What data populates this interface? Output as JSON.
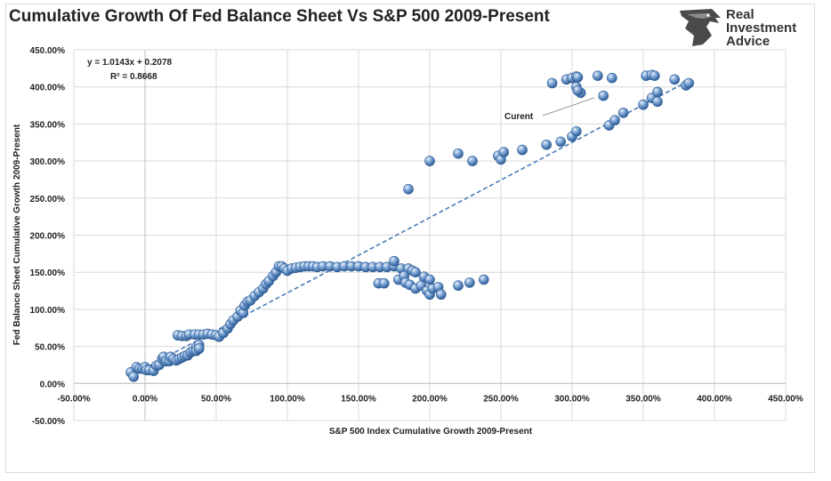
{
  "header": {
    "title": "Cumulative Growth Of Fed Balance Sheet Vs S&P 500 2009-Present"
  },
  "logo": {
    "line1": "Real",
    "line2": "Investment",
    "line3": "Advice",
    "icon": "eagle-head-icon"
  },
  "colors": {
    "point_fill": "#5b86c0",
    "point_stroke": "#2e5d96",
    "trendline": "#4a7ab8",
    "gridline": "#d9d9d9"
  },
  "chart_data": {
    "type": "scatter",
    "title": "Cumulative Growth Of Fed Balance Sheet Vs S&P 500 2009-Present",
    "xlabel": "S&P 500 Index Cumulative Growth 2009-Present",
    "ylabel": "Fed Balance Sheet Cumulative Growth 2009-Present",
    "xlim": [
      -0.5,
      4.5
    ],
    "ylim": [
      -0.5,
      4.5
    ],
    "x_ticks": [
      -0.5,
      0,
      0.5,
      1,
      1.5,
      2,
      2.5,
      3,
      3.5,
      4,
      4.5
    ],
    "x_tick_labels": [
      "-50.00%",
      "0.00%",
      "50.00%",
      "100.00%",
      "150.00%",
      "200.00%",
      "250.00%",
      "300.00%",
      "350.00%",
      "400.00%",
      "450.00%"
    ],
    "y_ticks": [
      -0.5,
      0,
      0.5,
      1,
      1.5,
      2,
      2.5,
      3,
      3.5,
      4,
      4.5
    ],
    "y_tick_labels": [
      "-50.00%",
      "0.00%",
      "50.00%",
      "100.00%",
      "150.00%",
      "200.00%",
      "250.00%",
      "300.00%",
      "350.00%",
      "400.00%",
      "450.00%"
    ],
    "grid": true,
    "gridlines": "vertical and horizontal",
    "legend": "none",
    "trendline": {
      "type": "linear",
      "slope": 1.0143,
      "intercept": 0.2078,
      "x_range": [
        -0.1,
        3.82
      ],
      "equation_label": "y = 1.0143x + 0.2078",
      "r2_label": "R² = 0.8668"
    },
    "annotation": {
      "text": "Curent",
      "points_to": [
        3.22,
        3.92
      ]
    },
    "series": [
      {
        "points": [
          [
            -0.1,
            0.15
          ],
          [
            -0.08,
            0.09
          ],
          [
            -0.06,
            0.22
          ],
          [
            -0.04,
            0.2
          ],
          [
            -0.02,
            0.2
          ],
          [
            0.0,
            0.22
          ],
          [
            0.01,
            0.18
          ],
          [
            0.03,
            0.18
          ],
          [
            0.06,
            0.17
          ],
          [
            0.08,
            0.24
          ],
          [
            0.1,
            0.25
          ],
          [
            0.12,
            0.33
          ],
          [
            0.13,
            0.36
          ],
          [
            0.15,
            0.3
          ],
          [
            0.17,
            0.3
          ],
          [
            0.18,
            0.36
          ],
          [
            0.2,
            0.33
          ],
          [
            0.22,
            0.31
          ],
          [
            0.24,
            0.33
          ],
          [
            0.26,
            0.35
          ],
          [
            0.28,
            0.37
          ],
          [
            0.3,
            0.38
          ],
          [
            0.32,
            0.42
          ],
          [
            0.34,
            0.44
          ],
          [
            0.36,
            0.49
          ],
          [
            0.38,
            0.52
          ],
          [
            0.36,
            0.44
          ],
          [
            0.38,
            0.47
          ],
          [
            0.23,
            0.65
          ],
          [
            0.26,
            0.64
          ],
          [
            0.29,
            0.64
          ],
          [
            0.31,
            0.66
          ],
          [
            0.35,
            0.66
          ],
          [
            0.38,
            0.66
          ],
          [
            0.41,
            0.66
          ],
          [
            0.44,
            0.67
          ],
          [
            0.47,
            0.66
          ],
          [
            0.5,
            0.65
          ],
          [
            0.52,
            0.63
          ],
          [
            0.55,
            0.68
          ],
          [
            0.58,
            0.74
          ],
          [
            0.6,
            0.8
          ],
          [
            0.62,
            0.85
          ],
          [
            0.65,
            0.9
          ],
          [
            0.67,
            0.98
          ],
          [
            0.69,
            0.95
          ],
          [
            0.7,
            1.05
          ],
          [
            0.72,
            1.1
          ],
          [
            0.74,
            1.12
          ],
          [
            0.77,
            1.18
          ],
          [
            0.8,
            1.23
          ],
          [
            0.83,
            1.28
          ],
          [
            0.85,
            1.34
          ],
          [
            0.87,
            1.38
          ],
          [
            0.9,
            1.45
          ],
          [
            0.92,
            1.5
          ],
          [
            0.94,
            1.58
          ],
          [
            0.96,
            1.58
          ],
          [
            0.98,
            1.55
          ],
          [
            1.0,
            1.52
          ],
          [
            1.03,
            1.55
          ],
          [
            1.06,
            1.56
          ],
          [
            1.09,
            1.57
          ],
          [
            1.12,
            1.58
          ],
          [
            1.15,
            1.58
          ],
          [
            1.18,
            1.58
          ],
          [
            1.21,
            1.57
          ],
          [
            1.25,
            1.58
          ],
          [
            1.3,
            1.58
          ],
          [
            1.35,
            1.57
          ],
          [
            1.4,
            1.58
          ],
          [
            1.45,
            1.58
          ],
          [
            1.5,
            1.58
          ],
          [
            1.55,
            1.57
          ],
          [
            1.6,
            1.57
          ],
          [
            1.65,
            1.57
          ],
          [
            1.7,
            1.57
          ],
          [
            1.75,
            1.58
          ],
          [
            1.8,
            1.55
          ],
          [
            1.85,
            1.55
          ],
          [
            1.88,
            1.52
          ],
          [
            1.9,
            1.5
          ],
          [
            1.75,
            1.65
          ],
          [
            1.78,
            1.4
          ],
          [
            1.82,
            1.45
          ],
          [
            1.83,
            1.36
          ],
          [
            1.86,
            1.33
          ],
          [
            1.9,
            1.28
          ],
          [
            1.94,
            1.32
          ],
          [
            1.98,
            1.25
          ],
          [
            2.0,
            1.2
          ],
          [
            2.02,
            1.28
          ],
          [
            2.06,
            1.3
          ],
          [
            2.08,
            1.2
          ],
          [
            1.96,
            1.44
          ],
          [
            2.0,
            1.4
          ],
          [
            1.64,
            1.35
          ],
          [
            1.68,
            1.35
          ],
          [
            2.2,
            1.32
          ],
          [
            2.28,
            1.36
          ],
          [
            2.38,
            1.4
          ],
          [
            1.85,
            2.62
          ],
          [
            2.0,
            3.0
          ],
          [
            2.2,
            3.1
          ],
          [
            2.3,
            3.0
          ],
          [
            2.48,
            3.07
          ],
          [
            2.5,
            3.02
          ],
          [
            2.52,
            3.12
          ],
          [
            2.65,
            3.15
          ],
          [
            2.82,
            3.22
          ],
          [
            2.92,
            3.26
          ],
          [
            3.0,
            3.33
          ],
          [
            3.03,
            3.4
          ],
          [
            3.26,
            3.48
          ],
          [
            3.3,
            3.55
          ],
          [
            3.36,
            3.65
          ],
          [
            3.5,
            3.76
          ],
          [
            3.56,
            3.85
          ],
          [
            3.6,
            3.8
          ],
          [
            3.6,
            3.93
          ],
          [
            3.8,
            4.02
          ],
          [
            3.82,
            4.05
          ],
          [
            3.72,
            4.1
          ],
          [
            2.86,
            4.05
          ],
          [
            2.96,
            4.1
          ],
          [
            3.0,
            4.12
          ],
          [
            3.03,
            4.14
          ],
          [
            3.04,
            4.13
          ],
          [
            3.03,
            4.0
          ],
          [
            3.06,
            3.92
          ],
          [
            3.18,
            4.15
          ],
          [
            3.28,
            4.12
          ],
          [
            3.52,
            4.15
          ],
          [
            3.56,
            4.16
          ],
          [
            3.58,
            4.15
          ],
          [
            3.04,
            3.95
          ],
          [
            3.22,
            3.88
          ]
        ]
      }
    ]
  }
}
